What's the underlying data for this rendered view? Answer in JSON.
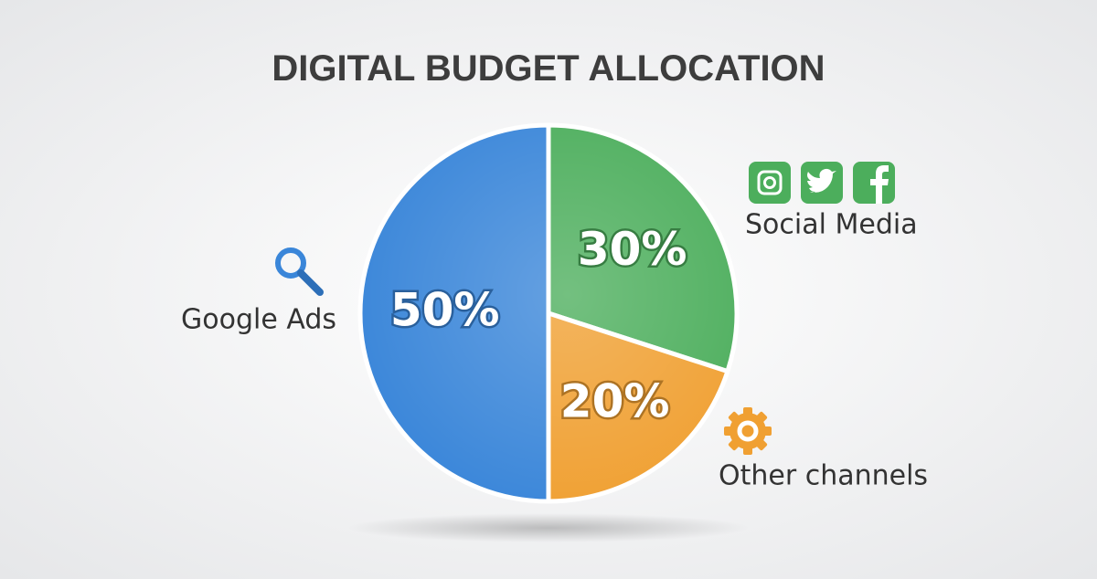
{
  "chart_data": {
    "type": "pie",
    "title": "DIGITAL BUDGET ALLOCATION",
    "categories": [
      "Google Ads",
      "Social Media",
      "Other channels"
    ],
    "values": [
      50,
      30,
      20
    ],
    "value_labels": [
      "50%",
      "30%",
      "20%"
    ],
    "colors": [
      "#3a86d9",
      "#4cae5c",
      "#f0a032"
    ]
  }
}
